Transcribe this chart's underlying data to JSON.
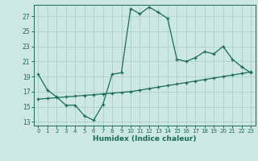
{
  "xlabel": "Humidex (Indice chaleur)",
  "bg_color": "#cce8e0",
  "grid_color": "#b0d4cc",
  "line_color": "#1a6b5a",
  "xlim": [
    -0.5,
    23.5
  ],
  "ylim": [
    12.5,
    28.5
  ],
  "yticks": [
    13,
    15,
    17,
    19,
    21,
    23,
    25,
    27
  ],
  "xticks": [
    0,
    1,
    2,
    3,
    4,
    5,
    6,
    7,
    8,
    9,
    10,
    11,
    12,
    13,
    14,
    15,
    16,
    17,
    18,
    19,
    20,
    21,
    22,
    23
  ],
  "line1_x": [
    0,
    1,
    2,
    3,
    4,
    5,
    6,
    7,
    8,
    9,
    10,
    11,
    12,
    13,
    14,
    15,
    16,
    17,
    18,
    19,
    20,
    21,
    22,
    23
  ],
  "line1_y": [
    19.3,
    17.2,
    16.3,
    15.2,
    15.2,
    13.8,
    13.2,
    15.3,
    19.3,
    19.5,
    28.0,
    27.3,
    28.2,
    27.5,
    26.7,
    21.3,
    21.0,
    21.5,
    22.3,
    22.0,
    23.0,
    21.3,
    20.3,
    19.5
  ],
  "line2_x": [
    0,
    1,
    2,
    3,
    4,
    5,
    6,
    7,
    8,
    9,
    10,
    11,
    12,
    13,
    14,
    15,
    16,
    17,
    18,
    19,
    20,
    21,
    22,
    23
  ],
  "line2_y": [
    16.0,
    16.1,
    16.2,
    16.3,
    16.4,
    16.5,
    16.6,
    16.7,
    16.8,
    16.9,
    17.0,
    17.2,
    17.4,
    17.6,
    17.8,
    18.0,
    18.2,
    18.4,
    18.6,
    18.8,
    19.0,
    19.2,
    19.4,
    19.6
  ]
}
